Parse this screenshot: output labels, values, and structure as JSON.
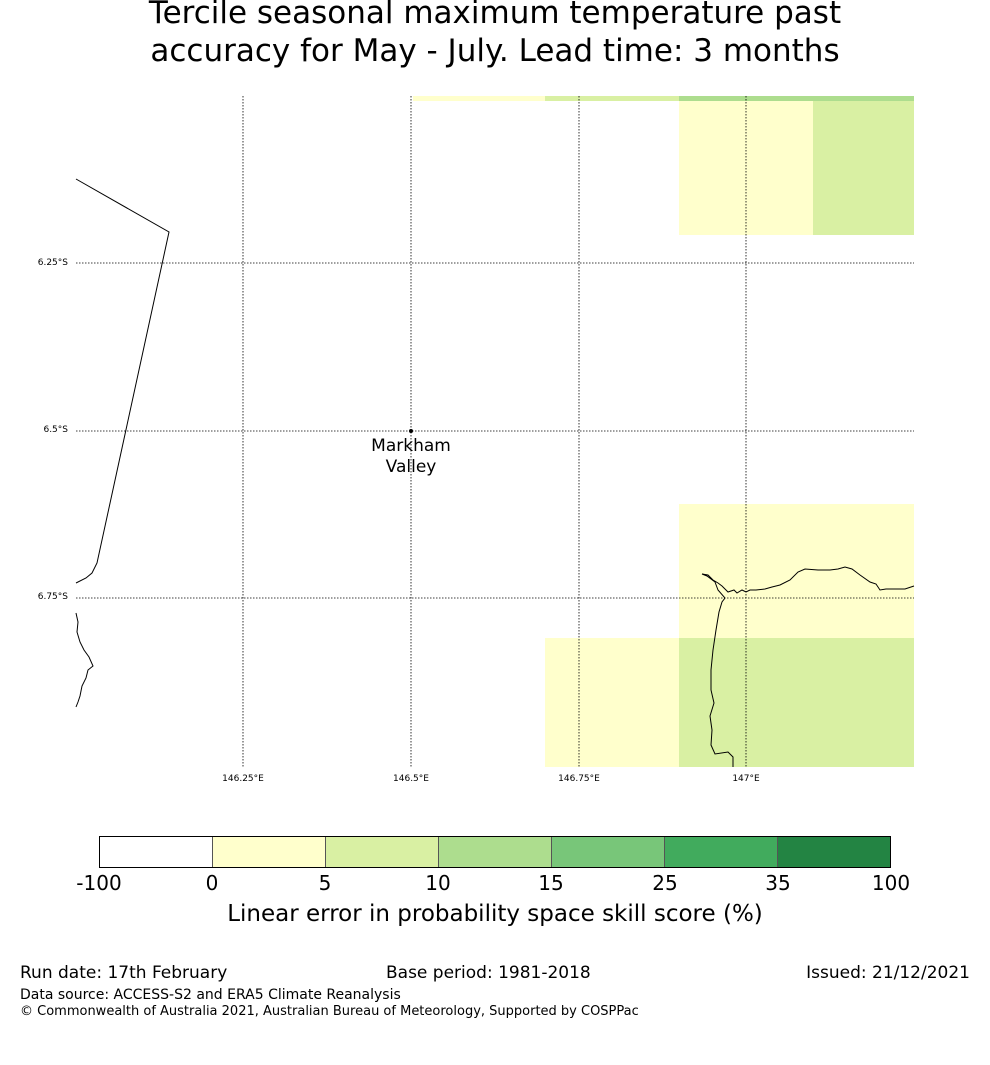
{
  "title": {
    "line1": "Tercile seasonal maximum temperature past",
    "line2": "accuracy for May - July. Lead time: 3 months"
  },
  "map": {
    "lat_labels": [
      "6.25°S",
      "6.5°S",
      "6.75°S"
    ],
    "lon_labels": [
      "146.25°E",
      "146.5°E",
      "146.75°E",
      "147°E"
    ],
    "place": {
      "name_line1": "Markham",
      "name_line2": "Valley"
    }
  },
  "colorbar": {
    "ticks": [
      "-100",
      "0",
      "5",
      "10",
      "15",
      "25",
      "35",
      "100"
    ],
    "colors": [
      "#ffffff",
      "#ffffcc",
      "#d9f0a3",
      "#addd8e",
      "#78c679",
      "#41ab5d",
      "#238443"
    ],
    "label": "Linear error in probability space skill score (%)"
  },
  "footer": {
    "run_date": "Run date: 17th February",
    "base_period": "Base period: 1981-2018",
    "issued": "Issued: 21/12/2021",
    "data_source": "Data source: ACCESS-S2 and ERA5 Climate Reanalysis",
    "copyright": "© Commonwealth of Australia 2021, Australian Bureau of Meteorology, Supported by COSPPac"
  }
}
